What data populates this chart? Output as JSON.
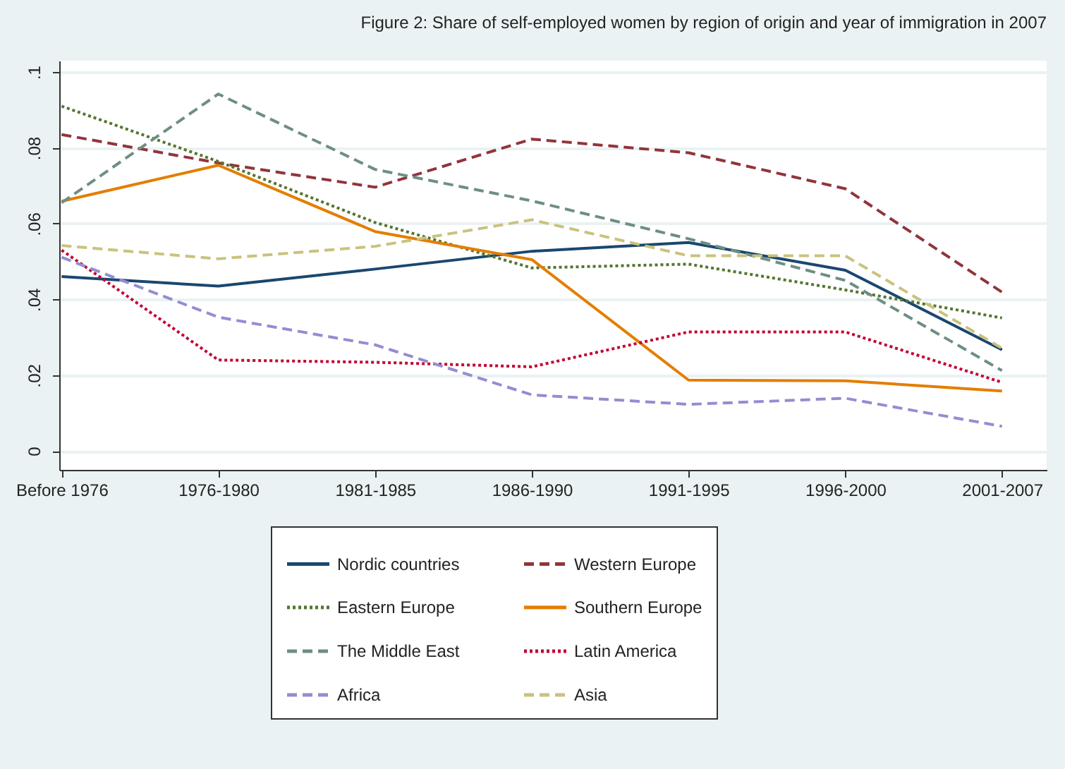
{
  "chart_data": {
    "type": "line",
    "title": "Figure 2: Share of self-employed women by region of origin and year of immigration in 2007",
    "categories": [
      "Before 1976",
      "1976-1980",
      "1981-1985",
      "1986-1990",
      "1991-1995",
      "1996-2000",
      "2001-2007"
    ],
    "series": [
      {
        "name": "Nordic countries",
        "color": "#1a476f",
        "line_style": "solid",
        "values": [
          0.046,
          0.0435,
          0.048,
          0.0527,
          0.055,
          0.0477,
          0.0267
        ]
      },
      {
        "name": "Western Europe",
        "color": "#90353b",
        "line_style": "dashed",
        "values": [
          0.0835,
          0.076,
          0.0696,
          0.0823,
          0.0787,
          0.0692,
          0.0419
        ]
      },
      {
        "name": "Eastern Europe",
        "color": "#55752f",
        "line_style": "dotted",
        "values": [
          0.091,
          0.0764,
          0.0603,
          0.0483,
          0.0493,
          0.0425,
          0.0351
        ]
      },
      {
        "name": "Southern Europe",
        "color": "#e37e00",
        "line_style": "solid",
        "values": [
          0.0659,
          0.0754,
          0.0579,
          0.0505,
          0.0187,
          0.0185,
          0.0158
        ]
      },
      {
        "name": "The Middle East",
        "color": "#6e8e84",
        "line_style": "dashed",
        "values": [
          0.0655,
          0.0942,
          0.0743,
          0.066,
          0.056,
          0.045,
          0.0212
        ]
      },
      {
        "name": "Latin America",
        "color": "#c10534",
        "line_style": "dotted",
        "values": [
          0.053,
          0.024,
          0.0234,
          0.0222,
          0.0314,
          0.0314,
          0.0181
        ]
      },
      {
        "name": "Africa",
        "color": "#938dd2",
        "line_style": "dashed",
        "values": [
          0.0511,
          0.0353,
          0.028,
          0.0148,
          0.0123,
          0.0139,
          0.0065
        ]
      },
      {
        "name": "Asia",
        "color": "#cac27e",
        "line_style": "dashed",
        "values": [
          0.0542,
          0.0507,
          0.054,
          0.061,
          0.0515,
          0.0515,
          0.0271
        ]
      }
    ],
    "ylim": [
      -0.005,
      0.103
    ],
    "yticks": [
      {
        "value": 0,
        "label": "0"
      },
      {
        "value": 0.02,
        "label": ".02"
      },
      {
        "value": 0.04,
        "label": ".04"
      },
      {
        "value": 0.06,
        "label": ".06"
      },
      {
        "value": 0.08,
        "label": ".08"
      },
      {
        "value": 0.1,
        "label": ".1"
      }
    ],
    "grid": "y",
    "legend": "bottom"
  }
}
